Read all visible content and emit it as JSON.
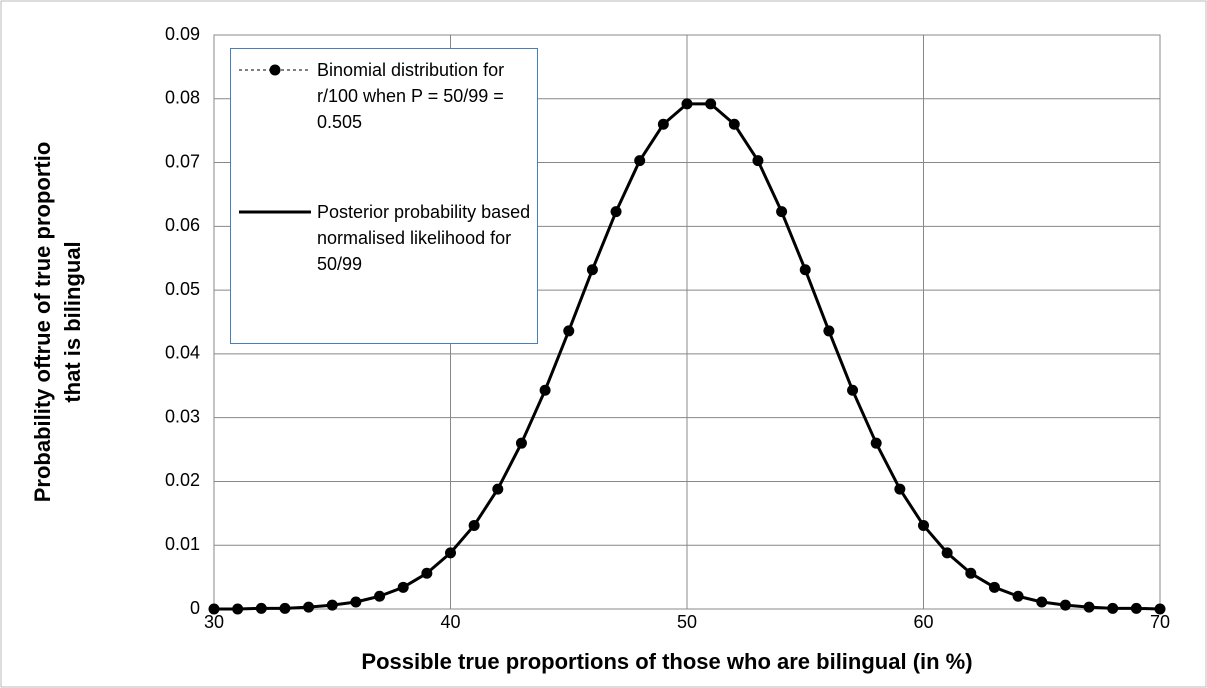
{
  "chart_data": {
    "type": "line",
    "xlabel": "Possible true proportions of those who are bilingual (in %)",
    "ylabel": [
      "Probability oftrue  of  true proportio",
      "that is bilingual"
    ],
    "x": [
      30,
      31,
      32,
      33,
      34,
      35,
      36,
      37,
      38,
      39,
      40,
      41,
      42,
      43,
      44,
      45,
      46,
      47,
      48,
      49,
      50,
      51,
      52,
      53,
      54,
      55,
      56,
      57,
      58,
      59,
      60,
      61,
      62,
      63,
      64,
      65,
      66,
      67,
      68,
      69,
      70
    ],
    "series": [
      {
        "name": "Binomial distribution for r/100 when P = 50/99 = 0.505",
        "color": "#000000",
        "style": "dashed-markers",
        "values": [
          0,
          0,
          0.0001,
          0.0001,
          0.0003,
          0.0006,
          0.0011,
          0.002,
          0.0034,
          0.0056,
          0.0088,
          0.0131,
          0.0188,
          0.026,
          0.0343,
          0.0436,
          0.0532,
          0.0623,
          0.0703,
          0.076,
          0.0792,
          0.0792,
          0.076,
          0.0703,
          0.0623,
          0.0532,
          0.0436,
          0.0343,
          0.026,
          0.0188,
          0.0131,
          0.0088,
          0.0056,
          0.0034,
          0.002,
          0.0011,
          0.0006,
          0.0003,
          0.0001,
          0.0001,
          0
        ]
      },
      {
        "name": "Posterior probability based normalised likelihood for 50/99",
        "color": "#000000",
        "style": "solid",
        "values": [
          0,
          0,
          0.0001,
          0.0001,
          0.0003,
          0.0006,
          0.0011,
          0.002,
          0.0034,
          0.0056,
          0.0088,
          0.0131,
          0.0188,
          0.026,
          0.0343,
          0.0436,
          0.0532,
          0.0623,
          0.0703,
          0.076,
          0.0792,
          0.0792,
          0.076,
          0.0703,
          0.0623,
          0.0532,
          0.0436,
          0.0343,
          0.026,
          0.0188,
          0.0131,
          0.0088,
          0.0056,
          0.0034,
          0.002,
          0.0011,
          0.0006,
          0.0003,
          0.0001,
          0.0001,
          0
        ]
      }
    ],
    "xlim": [
      30,
      70
    ],
    "xticks": [
      30,
      40,
      50,
      60,
      70
    ],
    "ylim": [
      0,
      0.09
    ],
    "yticks": [
      0,
      0.01,
      0.02,
      0.03,
      0.04,
      0.05,
      0.06,
      0.07,
      0.08,
      0.09
    ],
    "grid": true
  }
}
